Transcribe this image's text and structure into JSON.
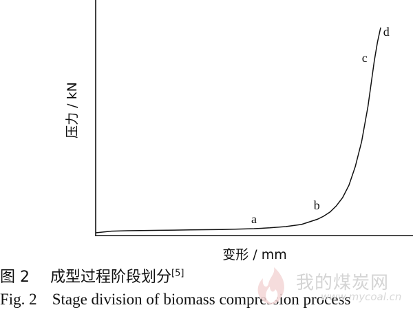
{
  "chart_data": {
    "type": "line",
    "xlabel": "变形 / mm",
    "ylabel": "压力 / kN",
    "xlim": [
      0,
      100
    ],
    "ylim": [
      0,
      100
    ],
    "series": [
      {
        "x": [
          0,
          5,
          10,
          20,
          30,
          40,
          50,
          55,
          60,
          65,
          70,
          72,
          74,
          76,
          78,
          80,
          82,
          84,
          86,
          87,
          88,
          89,
          90
        ],
        "values": [
          1,
          1.8,
          2,
          2.2,
          2.4,
          2.6,
          3,
          3.4,
          4,
          5,
          7.5,
          9,
          11,
          14,
          18,
          24,
          33,
          45,
          62,
          73,
          84,
          93,
          100
        ]
      }
    ],
    "points": [
      {
        "label": "a",
        "x": 50,
        "y": 3
      },
      {
        "label": "b",
        "x": 72,
        "y": 9
      },
      {
        "label": "c",
        "x": 88,
        "y": 84
      },
      {
        "label": "d",
        "x": 89.5,
        "y": 96
      }
    ]
  },
  "caption": {
    "cn_fig": "图 2",
    "cn_text": "成型过程阶段划分",
    "cn_ref": "[5]",
    "en_fig": "Fig. 2",
    "en_text": "Stage division of biomass compression process"
  },
  "watermark": {
    "text": "我的煤炭网",
    "url": "www.mycoal.cn"
  }
}
